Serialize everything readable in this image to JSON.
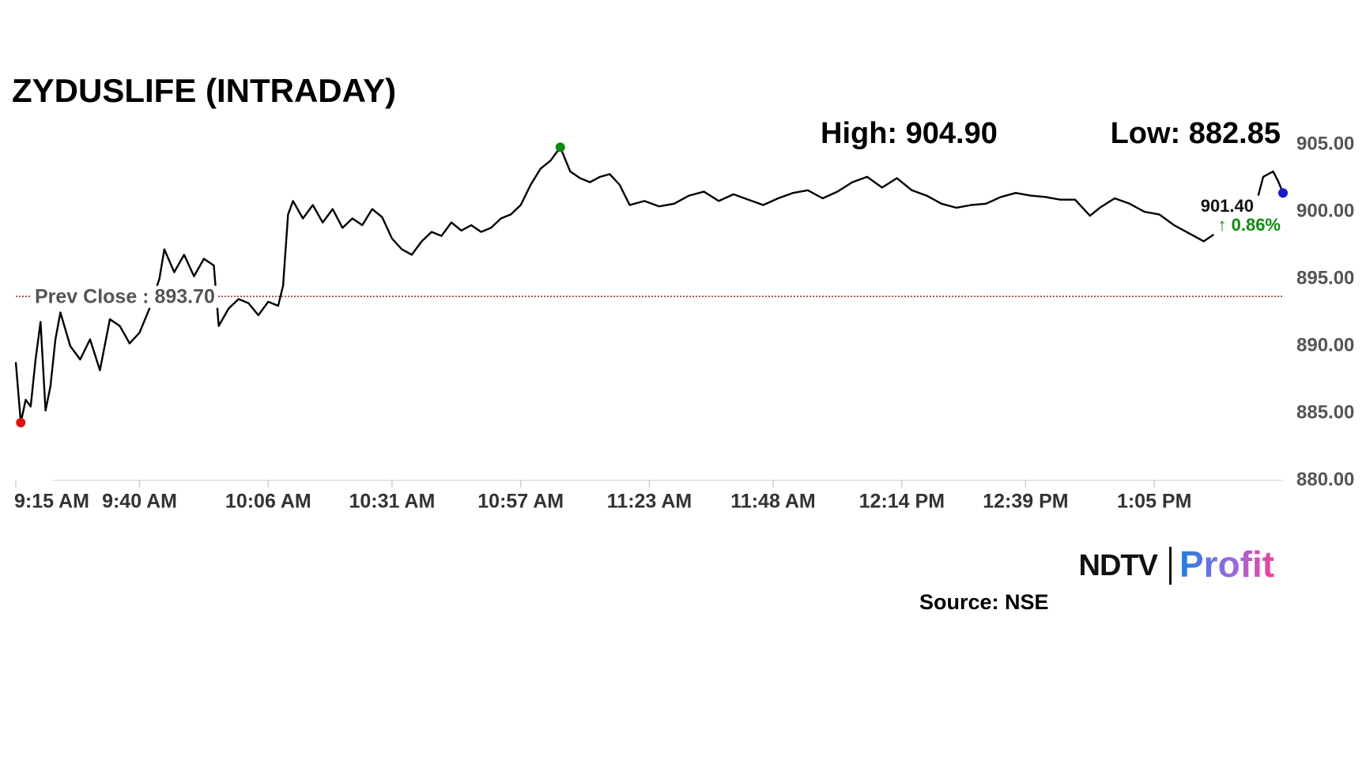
{
  "chart_data": {
    "type": "line",
    "title": "ZYDUSLIFE (INTRADAY)",
    "high_label": "High: 904.90",
    "low_label": "Low: 882.85",
    "last_label": "901.40",
    "change_label": "↑ 0.86%",
    "change_color": "#118811",
    "prev_close": 893.7,
    "prev_close_label": "Prev Close : 893.70",
    "prev_close_color": "#8b2a1a",
    "marker_colors": {
      "high": "#118811",
      "low": "#e01010",
      "last": "#1a1acc"
    },
    "source": "Source: NSE",
    "logo": {
      "left": "NDTV",
      "right": "Profit"
    },
    "x": [
      555,
      556,
      557,
      558,
      559,
      560,
      561,
      562,
      563,
      564,
      566,
      568,
      570,
      572,
      574,
      576,
      578,
      580,
      582,
      584,
      585,
      587,
      589,
      591,
      593,
      595,
      596,
      598,
      600,
      602,
      604,
      606,
      608,
      609,
      610,
      611,
      613,
      615,
      617,
      619,
      621,
      623,
      625,
      627,
      629,
      631,
      633,
      635,
      637,
      639,
      641,
      643,
      645,
      647,
      649,
      651,
      653,
      655,
      657,
      659,
      661,
      663,
      665,
      667,
      669,
      671,
      673,
      675,
      677,
      679,
      682,
      685,
      688,
      691,
      694,
      697,
      700,
      703,
      706,
      709,
      712,
      715,
      718,
      721,
      724,
      727,
      730,
      733,
      736,
      739,
      742,
      745,
      748,
      751,
      754,
      757,
      760,
      763,
      766,
      769,
      772,
      774,
      777,
      780,
      783,
      786,
      789,
      792,
      795,
      797,
      798,
      806,
      807,
      809,
      810,
      811
    ],
    "series": [
      {
        "color": "#000000",
        "values": [
          888.8,
          884.3,
          886,
          885.5,
          889,
          891.8,
          885.2,
          887,
          890.5,
          892.5,
          890,
          889,
          890.5,
          888.2,
          892,
          891.5,
          890.2,
          891,
          892.8,
          895,
          897.2,
          895.5,
          896.8,
          895.2,
          896.5,
          896,
          891.5,
          892.8,
          893.5,
          893.2,
          892.3,
          893.3,
          893,
          894.5,
          899.8,
          900.8,
          899.5,
          900.5,
          899.2,
          900.2,
          898.8,
          899.5,
          899,
          900.2,
          899.6,
          898,
          897.2,
          896.8,
          897.8,
          898.5,
          898.2,
          899.2,
          898.6,
          899,
          898.5,
          898.8,
          899.5,
          899.8,
          900.5,
          902,
          903.2,
          903.8,
          904.8,
          903,
          902.5,
          902.2,
          902.6,
          902.8,
          902,
          900.5,
          900.8,
          900.4,
          900.6,
          901.2,
          901.5,
          900.8,
          901.3,
          900.9,
          900.5,
          901,
          901.4,
          901.6,
          901,
          901.5,
          902.2,
          902.6,
          901.8,
          902.5,
          901.6,
          901.2,
          900.6,
          900.3,
          900.5,
          900.6,
          901.1,
          901.4,
          901.2,
          901.1,
          900.9,
          900.9,
          899.7,
          900.3,
          901,
          900.6,
          900,
          899.8,
          899,
          898.4,
          897.8,
          898.3,
          null,
          901.2,
          902.6,
          903,
          902.3,
          901.4
        ]
      }
    ],
    "xlim": [
      555,
      811
    ],
    "xticks": [
      {
        "value": 555,
        "label": "9:15 AM"
      },
      {
        "value": 580,
        "label": "9:40 AM"
      },
      {
        "value": 606,
        "label": "10:06 AM"
      },
      {
        "value": 631,
        "label": "10:31 AM"
      },
      {
        "value": 657,
        "label": "10:57 AM"
      },
      {
        "value": 683,
        "label": "11:23 AM"
      },
      {
        "value": 708,
        "label": "11:48 AM"
      },
      {
        "value": 734,
        "label": "12:14 PM"
      },
      {
        "value": 759,
        "label": "12:39 PM"
      },
      {
        "value": 785,
        "label": "1:05 PM"
      }
    ],
    "ylim": [
      880,
      905
    ],
    "yticks": [
      {
        "value": 880,
        "label": "880.00"
      },
      {
        "value": 885,
        "label": "885.00"
      },
      {
        "value": 890,
        "label": "890.00"
      },
      {
        "value": 895,
        "label": "895.00"
      },
      {
        "value": 900,
        "label": "900.00"
      },
      {
        "value": 905,
        "label": "905.00"
      }
    ]
  }
}
